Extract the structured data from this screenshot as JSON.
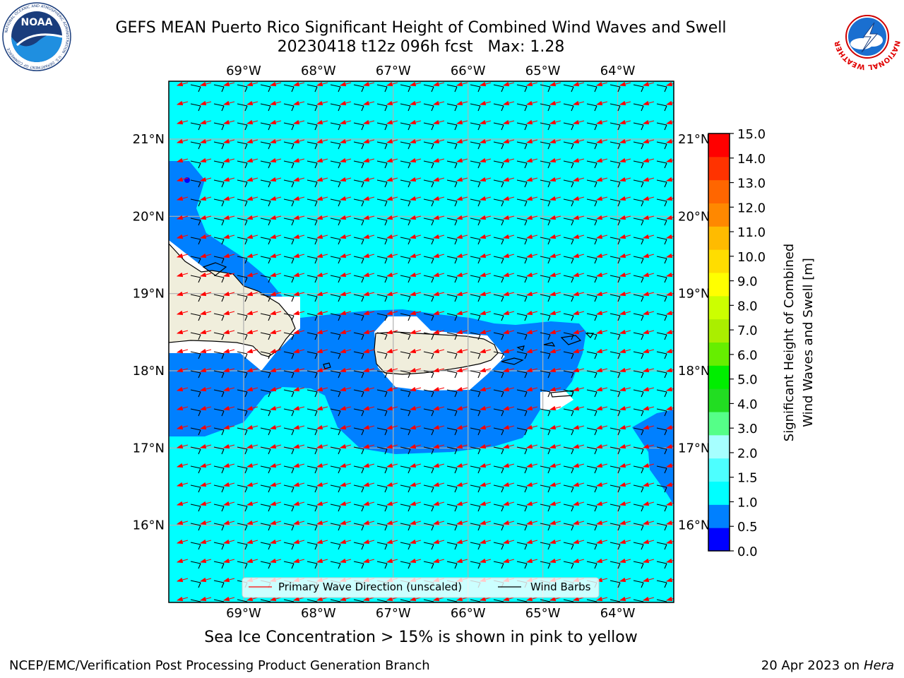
{
  "header": {
    "title_line1": "GEFS MEAN Puerto Rico Significant Height of Combined Wind Waves and Swell",
    "title_line2": "20230418 t12z 096h fcst   Max: 1.28"
  },
  "logos": {
    "left_name": "NOAA",
    "left_ring": "NATIONAL OCEANIC AND ATMOSPHERIC ADMINISTRATION · U.S. DEPARTMENT OF COMMERCE",
    "right_ring": "NATIONAL WEATHER SERVICE"
  },
  "map": {
    "lon_labels": [
      "69°W",
      "68°W",
      "67°W",
      "66°W",
      "65°W",
      "64°W"
    ],
    "lat_labels": [
      "21°N",
      "20°N",
      "19°N",
      "18°N",
      "17°N",
      "16°N"
    ],
    "lon_range": [
      -70.0,
      -63.25
    ],
    "lat_range": [
      15.0,
      21.75
    ],
    "colors": {
      "ocean_main": "#00ffff",
      "ocean_low": "#0080ff",
      "ocean_lowest": "#0000ff",
      "land": "#f0eedc",
      "wave_arrow": "#ff0000",
      "wind_barb": "#000000",
      "grid": "#b0b0b0"
    },
    "legend": {
      "wave_label": "Primary Wave Direction (unscaled)",
      "barb_label": "Wind Barbs"
    }
  },
  "colorbar": {
    "label_line1": "Significant Height of Combined",
    "label_line2": "Wind Waves and Swell [m]",
    "tick_labels": [
      "0.0",
      "0.5",
      "1.0",
      "1.5",
      "2.0",
      "3.0",
      "4.0",
      "5.0",
      "6.0",
      "7.0",
      "8.0",
      "9.0",
      "10.0",
      "11.0",
      "12.0",
      "13.0",
      "14.0",
      "15.0"
    ],
    "colors": [
      "#0000ff",
      "#0080ff",
      "#00ffff",
      "#4dffff",
      "#a6ffff",
      "#55ff88",
      "#22dd22",
      "#00ee00",
      "#66ee00",
      "#aaee00",
      "#ccff00",
      "#ffff00",
      "#ffdd00",
      "#ffbb00",
      "#ff8800",
      "#ff6600",
      "#ff3300",
      "#ff0000"
    ]
  },
  "notes": {
    "sea_ice": "Sea Ice Concentration > 15% is shown in pink to yellow"
  },
  "footer": {
    "left": "NCEP/EMC/Verification Post Processing Product Generation Branch",
    "right_prefix": "20 Apr 2023 on ",
    "right_host": "Hera"
  }
}
